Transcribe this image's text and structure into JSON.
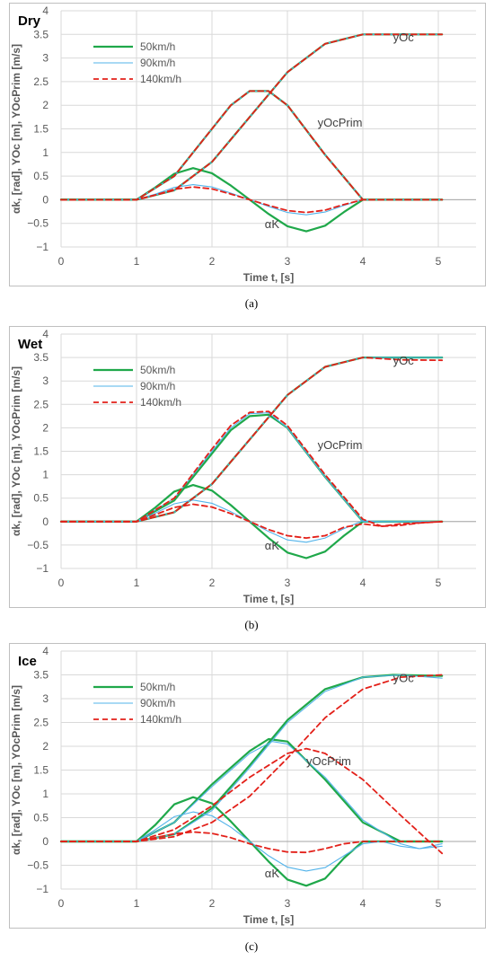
{
  "colors": {
    "50km/h": "#1fa84a",
    "90km/h": "#52b3ea",
    "140km/h": "#e3211a",
    "grid": "#d9d9d9",
    "axis": "#595959"
  },
  "chart_data": [
    {
      "type": "line",
      "title": "Dry",
      "caption": "(a)",
      "xlabel": "Time t, [s]",
      "ylabel": "αk, [rad], YOc [m], YOcPrim [m/s]",
      "xlim": [
        0,
        5.5
      ],
      "ylim": [
        -1,
        4
      ],
      "xticks": [
        "0",
        "1",
        "2",
        "3",
        "4",
        "5"
      ],
      "yticks": [
        "−1",
        "−0.5",
        "0",
        "0.5",
        "1",
        "1.5",
        "2",
        "2.5",
        "3",
        "3.5",
        "4"
      ],
      "grid": "vertical and horizontal",
      "legend": {
        "entries": [
          "50km/h",
          "90km/h",
          "140km/h"
        ],
        "placement": "top-left"
      },
      "annotations": {
        "y": "yOc",
        "yprim": "yOcPrim",
        "alpha": "αK"
      },
      "series": [
        {
          "name": "50km/h",
          "role": "alpha",
          "x": [
            0,
            1,
            1.25,
            1.5,
            1.75,
            2,
            2.25,
            2.5,
            2.75,
            3,
            3.25,
            3.5,
            3.75,
            4,
            5.05
          ],
          "values": [
            0,
            0,
            0.26,
            0.55,
            0.67,
            0.56,
            0.3,
            0,
            -0.3,
            -0.56,
            -0.67,
            -0.55,
            -0.26,
            0,
            0
          ]
        },
        {
          "name": "50km/h",
          "role": "y",
          "x": [
            0,
            1,
            1.5,
            2,
            2.5,
            3,
            3.5,
            4,
            5.05
          ],
          "values": [
            0,
            0,
            0.2,
            0.8,
            1.75,
            2.7,
            3.3,
            3.5,
            3.5
          ]
        },
        {
          "name": "50km/h",
          "role": "yprim",
          "x": [
            0,
            1,
            1.5,
            2,
            2.25,
            2.5,
            2.75,
            3,
            3.5,
            4,
            5.05
          ],
          "values": [
            0,
            0,
            0.5,
            1.5,
            2.0,
            2.3,
            2.3,
            2.0,
            0.95,
            0,
            0
          ]
        },
        {
          "name": "90km/h",
          "role": "alpha",
          "x": [
            0,
            1,
            1.25,
            1.5,
            1.75,
            2,
            2.25,
            2.5,
            2.75,
            3,
            3.25,
            3.5,
            3.75,
            4,
            5.05
          ],
          "values": [
            0,
            0,
            0.12,
            0.26,
            0.32,
            0.27,
            0.14,
            0,
            -0.14,
            -0.27,
            -0.32,
            -0.26,
            -0.12,
            0,
            0
          ]
        },
        {
          "name": "90km/h",
          "role": "y",
          "x": [
            0,
            1,
            1.5,
            2,
            2.5,
            3,
            3.5,
            4,
            5.05
          ],
          "values": [
            0,
            0,
            0.2,
            0.8,
            1.75,
            2.7,
            3.3,
            3.5,
            3.5
          ]
        },
        {
          "name": "90km/h",
          "role": "yprim",
          "x": [
            0,
            1,
            1.5,
            2,
            2.25,
            2.5,
            2.75,
            3,
            3.5,
            4,
            5.05
          ],
          "values": [
            0,
            0,
            0.5,
            1.5,
            2.0,
            2.3,
            2.3,
            2.0,
            0.95,
            0,
            0
          ]
        },
        {
          "name": "140km/h",
          "role": "alpha",
          "x": [
            0,
            1,
            1.25,
            1.5,
            1.75,
            2,
            2.25,
            2.5,
            2.75,
            3,
            3.25,
            3.5,
            3.75,
            4,
            5.05
          ],
          "values": [
            0,
            0,
            0.1,
            0.22,
            0.27,
            0.23,
            0.12,
            0,
            -0.12,
            -0.23,
            -0.27,
            -0.22,
            -0.1,
            0,
            0
          ]
        },
        {
          "name": "140km/h",
          "role": "y",
          "x": [
            0,
            1,
            1.5,
            2,
            2.5,
            3,
            3.5,
            4,
            5.05
          ],
          "values": [
            0,
            0,
            0.2,
            0.8,
            1.75,
            2.7,
            3.3,
            3.5,
            3.5
          ]
        },
        {
          "name": "140km/h",
          "role": "yprim",
          "x": [
            0,
            1,
            1.5,
            2,
            2.25,
            2.5,
            2.75,
            3,
            3.5,
            4,
            5.05
          ],
          "values": [
            0,
            0,
            0.5,
            1.5,
            2.0,
            2.3,
            2.3,
            2.0,
            0.95,
            0,
            0
          ]
        }
      ]
    },
    {
      "type": "line",
      "title": "Wet",
      "caption": "(b)",
      "xlabel": "Time t, [s]",
      "ylabel": "αk, [rad], YOc [m], YOcPrim [m/s]",
      "xlim": [
        0,
        5.5
      ],
      "ylim": [
        -1,
        4
      ],
      "xticks": [
        "0",
        "1",
        "2",
        "3",
        "4",
        "5"
      ],
      "yticks": [
        "−1",
        "−0.5",
        "0",
        "0.5",
        "1",
        "1.5",
        "2",
        "2.5",
        "3",
        "3.5",
        "4"
      ],
      "grid": "vertical and horizontal",
      "legend": {
        "entries": [
          "50km/h",
          "90km/h",
          "140km/h"
        ],
        "placement": "top-left"
      },
      "annotations": {
        "y": "yOc",
        "yprim": "yOcPrim",
        "alpha": "αK"
      },
      "series": [
        {
          "name": "50km/h",
          "role": "alpha",
          "x": [
            0,
            1,
            1.25,
            1.5,
            1.75,
            2,
            2.25,
            2.5,
            2.75,
            3,
            3.25,
            3.5,
            3.75,
            4,
            5.05
          ],
          "values": [
            0,
            0,
            0.3,
            0.64,
            0.78,
            0.66,
            0.35,
            0,
            -0.35,
            -0.66,
            -0.78,
            -0.64,
            -0.3,
            0,
            0
          ]
        },
        {
          "name": "50km/h",
          "role": "y",
          "x": [
            0,
            1,
            1.5,
            2,
            2.5,
            3,
            3.5,
            4,
            5.05
          ],
          "values": [
            0,
            0,
            0.2,
            0.8,
            1.75,
            2.7,
            3.3,
            3.5,
            3.5
          ]
        },
        {
          "name": "50km/h",
          "role": "yprim",
          "x": [
            0,
            1,
            1.5,
            2,
            2.25,
            2.5,
            2.75,
            3,
            3.5,
            4,
            5.05
          ],
          "values": [
            0,
            0,
            0.45,
            1.45,
            1.95,
            2.25,
            2.28,
            2.0,
            0.95,
            0,
            0
          ]
        },
        {
          "name": "90km/h",
          "role": "alpha",
          "x": [
            0,
            1,
            1.25,
            1.5,
            1.75,
            2,
            2.25,
            2.5,
            2.75,
            3,
            3.25,
            3.5,
            3.75,
            4,
            4.25,
            4.5,
            4.75,
            5.05
          ],
          "values": [
            0,
            0,
            0.18,
            0.38,
            0.46,
            0.39,
            0.21,
            0,
            -0.21,
            -0.39,
            -0.44,
            -0.35,
            -0.15,
            0.02,
            0,
            0,
            0,
            0
          ]
        },
        {
          "name": "90km/h",
          "role": "y",
          "x": [
            0,
            1,
            1.5,
            2,
            2.5,
            3,
            3.5,
            4,
            5.05
          ],
          "values": [
            0,
            0,
            0.2,
            0.8,
            1.75,
            2.7,
            3.3,
            3.5,
            3.5
          ]
        },
        {
          "name": "90km/h",
          "role": "yprim",
          "x": [
            0,
            1,
            1.5,
            2,
            2.25,
            2.5,
            2.75,
            3,
            3.5,
            4,
            5.05
          ],
          "values": [
            0,
            0,
            0.5,
            1.5,
            2.0,
            2.3,
            2.32,
            2.0,
            0.95,
            0,
            0
          ]
        },
        {
          "name": "140km/h",
          "role": "alpha",
          "x": [
            0,
            1,
            1.25,
            1.5,
            1.75,
            2,
            2.25,
            2.5,
            2.75,
            3,
            3.25,
            3.5,
            3.75,
            4,
            4.25,
            4.5,
            4.75,
            5.05
          ],
          "values": [
            0,
            0,
            0.15,
            0.3,
            0.37,
            0.31,
            0.17,
            0,
            -0.17,
            -0.3,
            -0.35,
            -0.3,
            -0.12,
            -0.05,
            -0.1,
            -0.08,
            -0.03,
            0
          ]
        },
        {
          "name": "140km/h",
          "role": "y",
          "x": [
            0,
            1,
            1.5,
            2,
            2.5,
            3,
            3.5,
            4,
            4.5,
            5.05
          ],
          "values": [
            0,
            0,
            0.2,
            0.8,
            1.75,
            2.7,
            3.3,
            3.5,
            3.45,
            3.44
          ]
        },
        {
          "name": "140km/h",
          "role": "yprim",
          "x": [
            0,
            1,
            1.5,
            2,
            2.25,
            2.5,
            2.75,
            3,
            3.5,
            4,
            4.25,
            4.5,
            5.05
          ],
          "values": [
            0,
            0,
            0.5,
            1.55,
            2.05,
            2.33,
            2.35,
            2.05,
            1.0,
            0.05,
            -0.1,
            -0.05,
            0
          ]
        }
      ]
    },
    {
      "type": "line",
      "title": "Ice",
      "caption": "(c)",
      "xlabel": "Time t, [s]",
      "ylabel": "αk, [rad], YOc [m], YOcPrim [m/s]",
      "xlim": [
        0,
        5.5
      ],
      "ylim": [
        -1,
        4
      ],
      "xticks": [
        "0",
        "1",
        "2",
        "3",
        "4",
        "5"
      ],
      "yticks": [
        "−1",
        "−0.5",
        "0",
        "0.5",
        "1",
        "1.5",
        "2",
        "2.5",
        "3",
        "3.5",
        "4"
      ],
      "grid": "vertical and horizontal",
      "legend": {
        "entries": [
          "50km/h",
          "90km/h",
          "140km/h"
        ],
        "placement": "top-left"
      },
      "annotations": {
        "y": "yOc",
        "yprim": "yOcPrim",
        "alpha": "αK"
      },
      "series": [
        {
          "name": "50km/h",
          "role": "alpha",
          "x": [
            0,
            1,
            1.25,
            1.5,
            1.75,
            2,
            2.25,
            2.5,
            2.75,
            3,
            3.25,
            3.5,
            3.75,
            4,
            5.05
          ],
          "values": [
            0,
            0,
            0.35,
            0.78,
            0.93,
            0.8,
            0.42,
            0,
            -0.42,
            -0.8,
            -0.93,
            -0.78,
            -0.35,
            0,
            0
          ]
        },
        {
          "name": "50km/h",
          "role": "y",
          "x": [
            0,
            1,
            1.5,
            2,
            2.5,
            3,
            3.5,
            4,
            4.4,
            5.05
          ],
          "values": [
            0,
            0,
            0.15,
            0.7,
            1.6,
            2.55,
            3.2,
            3.45,
            3.5,
            3.48
          ]
        },
        {
          "name": "50km/h",
          "role": "yprim",
          "x": [
            0,
            1,
            1.5,
            2,
            2.5,
            2.75,
            3,
            3.5,
            4,
            4.5,
            5.05
          ],
          "values": [
            0,
            0,
            0.4,
            1.2,
            1.9,
            2.15,
            2.1,
            1.3,
            0.4,
            0,
            0
          ]
        },
        {
          "name": "90km/h",
          "role": "alpha",
          "x": [
            0,
            1,
            1.25,
            1.5,
            1.75,
            2,
            2.25,
            2.5,
            2.75,
            3,
            3.25,
            3.5,
            3.75,
            4,
            4.25,
            4.5,
            4.75,
            5.05
          ],
          "values": [
            0,
            0,
            0.25,
            0.52,
            0.62,
            0.54,
            0.3,
            0,
            -0.3,
            -0.54,
            -0.62,
            -0.55,
            -0.3,
            -0.05,
            0,
            -0.1,
            -0.15,
            -0.05
          ]
        },
        {
          "name": "90km/h",
          "role": "y",
          "x": [
            0,
            1,
            1.5,
            2,
            2.5,
            3,
            3.5,
            4,
            4.5,
            5.05
          ],
          "values": [
            0,
            0,
            0.15,
            0.65,
            1.55,
            2.5,
            3.15,
            3.45,
            3.5,
            3.43
          ]
        },
        {
          "name": "90km/h",
          "role": "yprim",
          "x": [
            0,
            1,
            1.5,
            2,
            2.5,
            2.8,
            3,
            3.5,
            4,
            4.5,
            4.75,
            5.05
          ],
          "values": [
            0,
            0,
            0.4,
            1.15,
            1.85,
            2.1,
            2.05,
            1.35,
            0.45,
            -0.05,
            -0.15,
            -0.1
          ]
        },
        {
          "name": "140km/h",
          "role": "alpha",
          "x": [
            0,
            1,
            1.25,
            1.5,
            1.75,
            2,
            2.25,
            2.5,
            2.75,
            3,
            3.25,
            3.5,
            3.75,
            4,
            5.05
          ],
          "values": [
            0,
            0,
            0.08,
            0.16,
            0.2,
            0.17,
            0.08,
            -0.05,
            -0.15,
            -0.22,
            -0.23,
            -0.15,
            -0.05,
            0,
            0
          ]
        },
        {
          "name": "140km/h",
          "role": "y",
          "x": [
            0,
            1,
            1.5,
            2,
            2.5,
            3,
            3.5,
            4,
            4.5,
            5.05
          ],
          "values": [
            0,
            0,
            0.1,
            0.4,
            0.95,
            1.75,
            2.6,
            3.2,
            3.45,
            3.5
          ]
        },
        {
          "name": "140km/h",
          "role": "yprim",
          "x": [
            0,
            1,
            1.5,
            2,
            2.5,
            3,
            3.25,
            3.5,
            4,
            4.5,
            5.05
          ],
          "values": [
            0,
            0,
            0.25,
            0.75,
            1.35,
            1.85,
            1.95,
            1.85,
            1.3,
            0.55,
            -0.25
          ]
        }
      ]
    }
  ]
}
